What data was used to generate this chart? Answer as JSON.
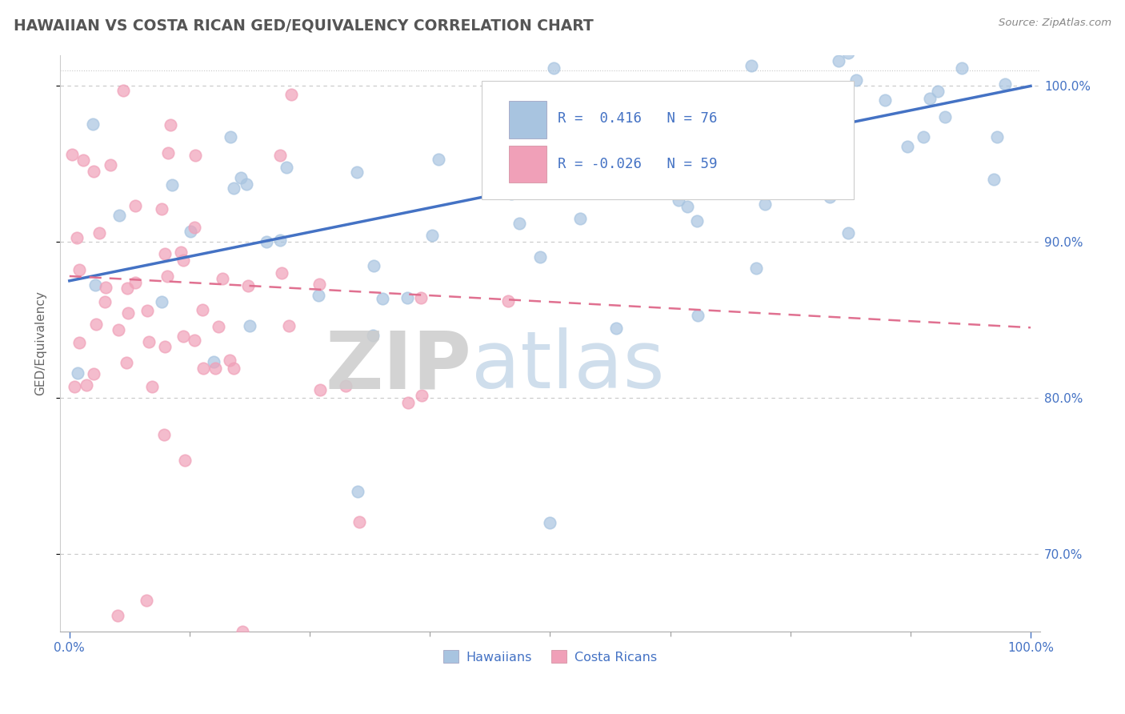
{
  "title": "HAWAIIAN VS COSTA RICAN GED/EQUIVALENCY CORRELATION CHART",
  "source": "Source: ZipAtlas.com",
  "ylabel": "GED/Equivalency",
  "xlim": [
    0,
    100
  ],
  "ylim": [
    65,
    102
  ],
  "yticks": [
    70,
    80,
    90,
    100
  ],
  "ytick_labels": [
    "70.0%",
    "80.0%",
    "90.0%",
    "100.0%"
  ],
  "xtick_labels": [
    "0.0%",
    "100.0%"
  ],
  "hawaiian_color": "#a8c4e0",
  "costarican_color": "#f0a0b8",
  "trend_hawaiian_color": "#4472c4",
  "trend_costarican_color": "#e07090",
  "background_color": "#ffffff",
  "grid_color": "#c8c8c8",
  "watermark_zip": "ZIP",
  "watermark_atlas": "atlas",
  "legend_r1_val": "0.416",
  "legend_n1_val": "76",
  "legend_r2_val": "-0.026",
  "legend_n2_val": "59",
  "blue_trend_start_y": 87.5,
  "blue_trend_end_y": 100.0,
  "pink_trend_start_y": 87.8,
  "pink_trend_end_y": 84.5
}
